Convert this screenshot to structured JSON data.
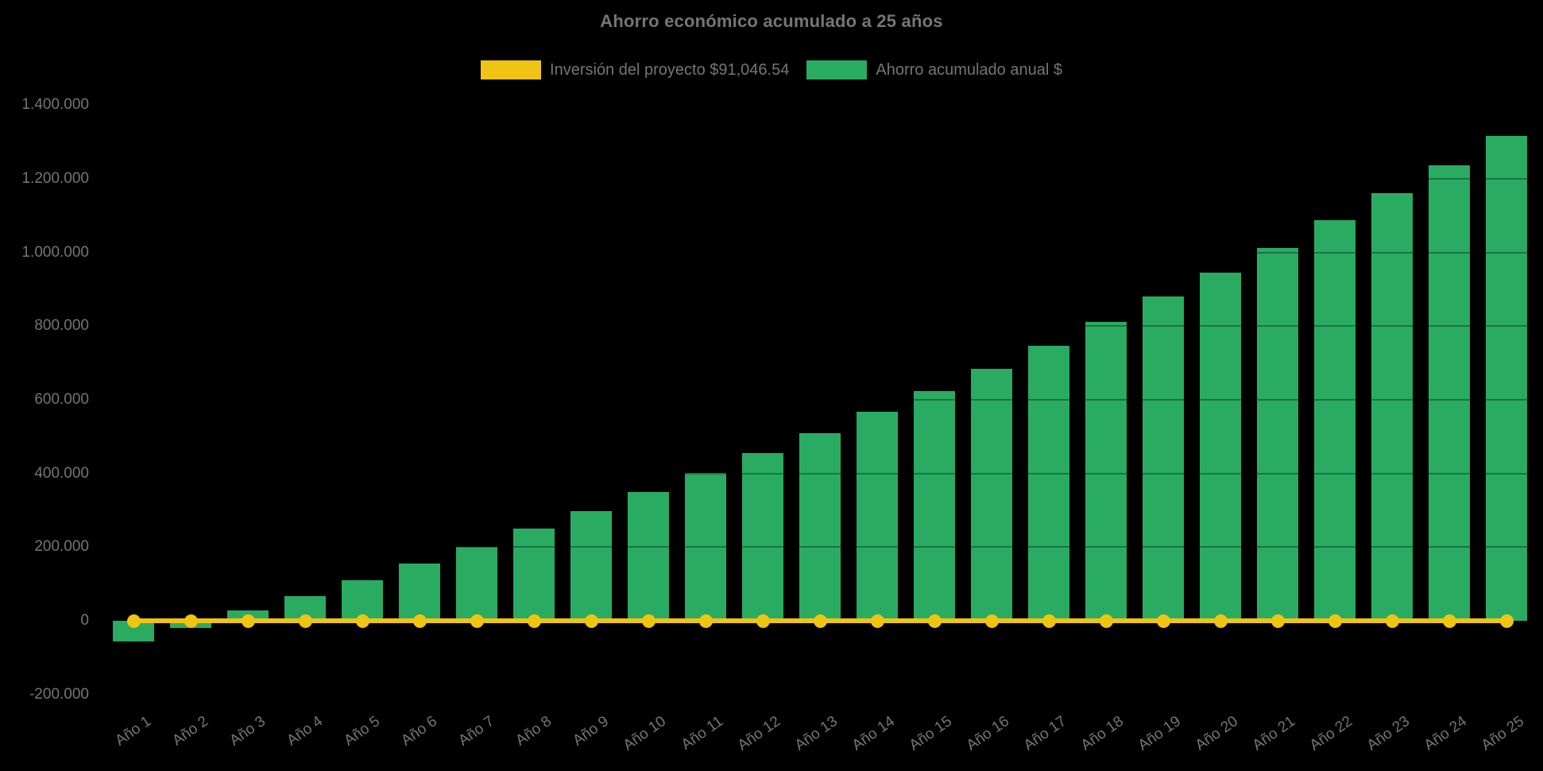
{
  "chart_data": {
    "type": "bar",
    "title": "Ahorro económico acumulado a 25 años",
    "categories": [
      "Año 1",
      "Año 2",
      "Año 3",
      "Año 4",
      "Año 5",
      "Año 6",
      "Año 7",
      "Año 8",
      "Año 9",
      "Año 10",
      "Año 11",
      "Año 12",
      "Año 13",
      "Año 14",
      "Año 15",
      "Año 16",
      "Año 17",
      "Año 18",
      "Año 19",
      "Año 20",
      "Año 21",
      "Año 22",
      "Año 23",
      "Año 24",
      "Año 25"
    ],
    "series": [
      {
        "name": "Inversión del proyecto $91,046.54",
        "type": "line",
        "color": "#f0c412",
        "values": [
          0,
          0,
          0,
          0,
          0,
          0,
          0,
          0,
          0,
          0,
          0,
          0,
          0,
          0,
          0,
          0,
          0,
          0,
          0,
          0,
          0,
          0,
          0,
          0,
          0
        ]
      },
      {
        "name": "Ahorro acumulado anual $",
        "type": "bar",
        "color": "#2aab62",
        "values": [
          -56000,
          -20000,
          28000,
          67000,
          110000,
          155000,
          201000,
          250000,
          298000,
          350000,
          402000,
          455000,
          509000,
          567000,
          623000,
          684000,
          746000,
          811000,
          880000,
          945000,
          1012000,
          1087000,
          1160000,
          1236000,
          1316000
        ]
      }
    ],
    "xlabel": "",
    "ylabel": "",
    "ylim": [
      -200000,
      1400000
    ],
    "y_tick_step": 200000,
    "y_ticks": [
      {
        "value": -200000,
        "label": "-200.000"
      },
      {
        "value": 0,
        "label": "0"
      },
      {
        "value": 200000,
        "label": "200.000"
      },
      {
        "value": 400000,
        "label": "400.000"
      },
      {
        "value": 600000,
        "label": "600.000"
      },
      {
        "value": 800000,
        "label": "800.000"
      },
      {
        "value": 1000000,
        "label": "1.000.000"
      },
      {
        "value": 1200000,
        "label": "1.200.000"
      },
      {
        "value": 1400000,
        "label": "1.400.000"
      }
    ],
    "legend_position": "top",
    "grid": "faint dark lines over bars",
    "background_color": "#000000",
    "text_color": "#757575"
  }
}
